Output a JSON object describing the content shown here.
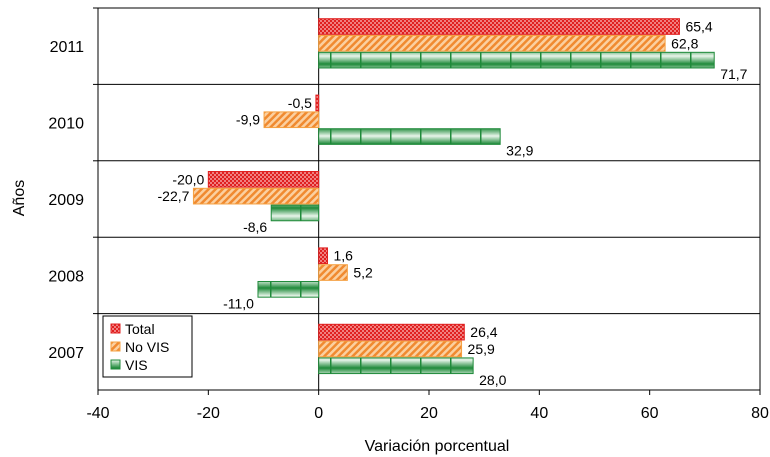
{
  "chart_data": {
    "type": "bar",
    "orientation": "horizontal",
    "categories": [
      "2011",
      "2010",
      "2009",
      "2008",
      "2007"
    ],
    "series": [
      {
        "name": "Total",
        "values": [
          65.4,
          -0.5,
          -20.0,
          1.6,
          26.4
        ],
        "labels": [
          "65,4",
          "-0,5",
          "-20,0",
          "1,6",
          "26,4"
        ],
        "color": "#e02020",
        "pattern": "checker"
      },
      {
        "name": "No VIS",
        "values": [
          62.8,
          -9.9,
          -22.7,
          5.2,
          25.9
        ],
        "labels": [
          "62,8",
          "-9,9",
          "-22,7",
          "5,2",
          "25,9"
        ],
        "color": "#f5a040",
        "pattern": "diagonal"
      },
      {
        "name": "VIS",
        "values": [
          71.7,
          32.9,
          -8.6,
          -11.0,
          28.0
        ],
        "labels": [
          "71,7",
          "32,9",
          "-8,6",
          "-11,0",
          "28,0"
        ],
        "color": "#1f8a3a",
        "pattern": "horizontal-bands"
      }
    ],
    "xlabel": "Variación porcentual",
    "ylabel": "Años",
    "xlim": [
      -40,
      80
    ],
    "xticks": [
      "-40",
      "-20",
      "0",
      "20",
      "40",
      "60",
      "80"
    ],
    "legend": "bottom-left inside",
    "grid": "horizontal category separators"
  }
}
